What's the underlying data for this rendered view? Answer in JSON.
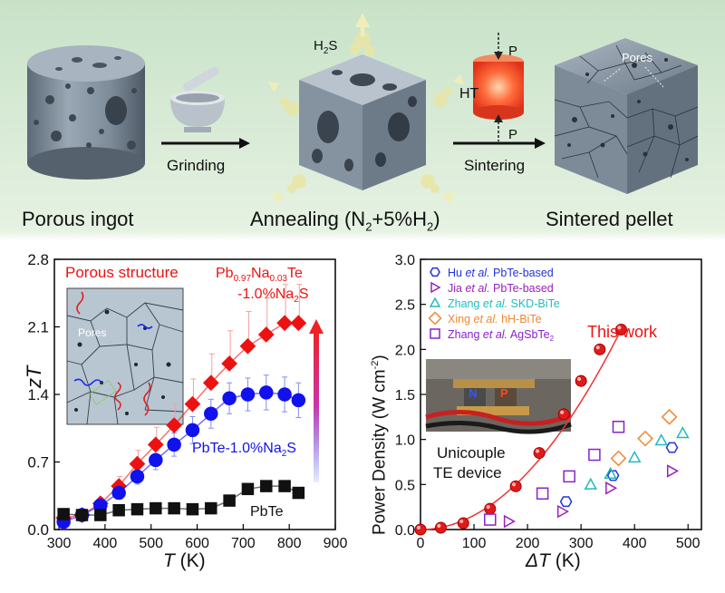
{
  "process": {
    "stages": [
      "Porous ingot",
      "Annealing (N",
      "+5%H",
      ")",
      "Sintered  pellet"
    ],
    "anneal_sub": [
      "2",
      "2"
    ],
    "steps": [
      "Grinding",
      "Sintering"
    ],
    "gas_label": "H",
    "gas_sub": "2",
    "gas_tail": "S",
    "ht_label": "HT",
    "pressure_label": "P",
    "pores_label": "Pores"
  },
  "zt_chart_text": {
    "ylabel_main": "zT",
    "xlabel_main": "T",
    "xlabel_unit": " (K)",
    "inset_title": "Porous structure",
    "inset_pores": "Pores",
    "label_pbnate_1": "Pb",
    "label_pbnate_sub1": "0.97",
    "label_pbnate_2": "Na",
    "label_pbnate_sub2": "0.03",
    "label_pbnate_3": "Te",
    "label_pbnate_line2": "-1.0%Na",
    "label_pbnate_line2_sub": "2",
    "label_pbnate_line2_tail": "S",
    "label_pbte_na2s": "PbTe-1.0%Na",
    "label_pbte_na2s_sub": "2",
    "label_pbte_na2s_tail": "S",
    "label_pbte": "PbTe",
    "yticks": [
      "0.0",
      "0.7",
      "1.4",
      "2.1",
      "2.8"
    ],
    "xticks": [
      "300",
      "400",
      "500",
      "600",
      "700",
      "800",
      "900"
    ]
  },
  "pd_chart_text": {
    "ylabel": "Power Density (W cm",
    "ylabel_sup": "-2",
    "ylabel_tail": ")",
    "xlabel_main": "ΔT",
    "xlabel_unit": " (K)",
    "this_work": "This work",
    "device_label_1": "Unicouple",
    "device_label_2": "TE device",
    "photo_n": "N",
    "photo_p": "P",
    "yticks": [
      "0.0",
      "0.5",
      "1.0",
      "1.5",
      "2.0",
      "2.5",
      "3.0"
    ],
    "xticks": [
      "0",
      "100",
      "200",
      "300",
      "400",
      "500"
    ],
    "legend": [
      {
        "pre": "Hu ",
        "et": "et al.",
        "post": " PbTe-based",
        "sub": "",
        "post2": ""
      },
      {
        "pre": "Jia ",
        "et": "et al.",
        "post": " PbTe-based",
        "sub": "",
        "post2": ""
      },
      {
        "pre": "Zhang ",
        "et": "et al.",
        "post": " SKD-BiTe",
        "sub": "",
        "post2": ""
      },
      {
        "pre": "Xing ",
        "et": "et al.",
        "post": " hH-BiTe",
        "sub": "",
        "post2": ""
      },
      {
        "pre": "Zhang ",
        "et": "et al.",
        "post": " AgSbTe",
        "sub": "2",
        "post2": ""
      }
    ]
  },
  "chart_data": [
    {
      "type": "line",
      "xlabel": "T (K)",
      "ylabel": "zT",
      "xlim": [
        290,
        900
      ],
      "ylim": [
        0,
        2.8
      ],
      "series": [
        {
          "name": "Pb0.97Na0.03Te-1.0%Na2S",
          "color": "#ee1111",
          "marker": "diamond",
          "x": [
            310,
            350,
            390,
            430,
            470,
            510,
            550,
            590,
            630,
            670,
            710,
            750,
            790,
            820
          ],
          "y": [
            0.12,
            0.15,
            0.27,
            0.45,
            0.68,
            0.88,
            1.08,
            1.3,
            1.52,
            1.72,
            1.9,
            2.02,
            2.14,
            2.14
          ]
        },
        {
          "name": "PbTe-1.0%Na2S",
          "color": "#1111ee",
          "marker": "circle",
          "x": [
            310,
            350,
            390,
            430,
            470,
            510,
            550,
            590,
            630,
            670,
            710,
            750,
            790,
            820
          ],
          "y": [
            0.08,
            0.15,
            0.25,
            0.38,
            0.55,
            0.72,
            0.88,
            1.03,
            1.2,
            1.36,
            1.4,
            1.42,
            1.4,
            1.34
          ],
          "err": [
            0.03,
            0.03,
            0.04,
            0.06,
            0.08,
            0.1,
            0.12,
            0.14,
            0.15,
            0.16,
            0.17,
            0.18,
            0.18,
            0.18
          ]
        },
        {
          "name": "PbTe",
          "color": "#111111",
          "marker": "square",
          "x": [
            310,
            350,
            390,
            430,
            470,
            510,
            550,
            590,
            630,
            670,
            710,
            750,
            790,
            820
          ],
          "y": [
            0.16,
            0.15,
            0.15,
            0.2,
            0.21,
            0.22,
            0.22,
            0.21,
            0.22,
            0.3,
            0.42,
            0.45,
            0.45,
            0.38
          ]
        }
      ],
      "upper_err_pbnate": [
        0.03,
        0.04,
        0.06,
        0.1,
        0.14,
        0.18,
        0.22,
        0.26,
        0.3,
        0.34,
        0.36,
        0.38,
        0.4,
        0.4
      ]
    },
    {
      "type": "scatter",
      "xlabel": "ΔT (K)",
      "ylabel": "Power Density (W cm-2)",
      "xlim": [
        0,
        525
      ],
      "ylim": [
        0,
        3.0
      ],
      "series": [
        {
          "name": "This work",
          "color": "#ee1111",
          "marker": "sphere",
          "x": [
            0,
            38,
            80,
            130,
            178,
            222,
            268,
            300,
            335,
            375
          ],
          "y": [
            0.0,
            0.02,
            0.07,
            0.23,
            0.48,
            0.85,
            1.28,
            1.65,
            2.0,
            2.22
          ]
        },
        {
          "name": "Hu et al. PbTe-based",
          "color": "#2233dd",
          "marker": "hexagon",
          "x": [
            272,
            360,
            470
          ],
          "y": [
            0.31,
            0.6,
            0.91
          ]
        },
        {
          "name": "Jia et al. PbTe-based",
          "color": "#9922bb",
          "marker": "triangle-right",
          "x": [
            165,
            265,
            355,
            470
          ],
          "y": [
            0.09,
            0.2,
            0.46,
            0.65
          ]
        },
        {
          "name": "Zhang et al. SKD-BiTe",
          "color": "#22bbbb",
          "marker": "triangle-up",
          "x": [
            318,
            355,
            400,
            450,
            490
          ],
          "y": [
            0.5,
            0.62,
            0.8,
            0.99,
            1.07
          ]
        },
        {
          "name": "Xing et al. hH-BiTe",
          "color": "#ee8833",
          "marker": "diamond",
          "x": [
            370,
            420,
            465
          ],
          "y": [
            0.79,
            1.01,
            1.25
          ]
        },
        {
          "name": "Zhang et al. AgSbTe2",
          "color": "#8822cc",
          "marker": "square",
          "x": [
            130,
            228,
            278,
            325,
            370
          ],
          "y": [
            0.11,
            0.4,
            0.59,
            0.83,
            1.14
          ]
        }
      ]
    }
  ]
}
